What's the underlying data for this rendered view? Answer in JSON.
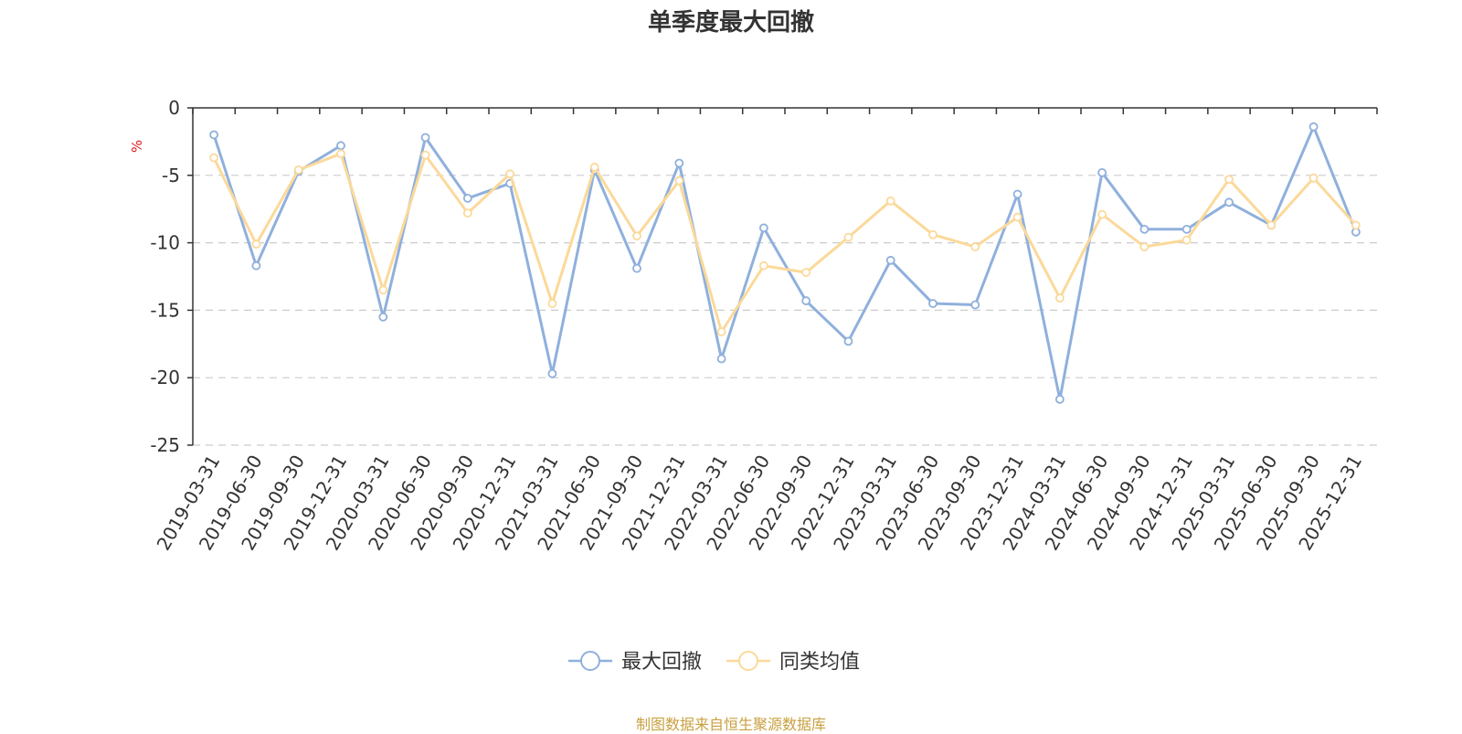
{
  "chart_data": {
    "type": "line",
    "title": "单季度最大回撤",
    "ylabel": "%",
    "ylim": [
      -25,
      0
    ],
    "yticks": [
      0,
      -5,
      -10,
      -15,
      -20,
      -25
    ],
    "grid": true,
    "legend_position": "bottom-center",
    "categories": [
      "2019-03-31",
      "2019-06-30",
      "2019-09-30",
      "2019-12-31",
      "2020-03-31",
      "2020-06-30",
      "2020-09-30",
      "2020-12-31",
      "2021-03-31",
      "2021-06-30",
      "2021-09-30",
      "2021-12-31",
      "2022-03-31",
      "2022-06-30",
      "2022-09-30",
      "2022-12-31",
      "2023-03-31",
      "2023-06-30",
      "2023-09-30",
      "2023-12-31",
      "2024-03-31",
      "2024-06-30",
      "2024-09-30",
      "2024-12-31",
      "2025-03-31",
      "2025-06-30",
      "2025-09-30",
      "2025-12-31"
    ],
    "series": [
      {
        "name": "最大回撤",
        "color": "#8fb0dc",
        "values": [
          -2.0,
          -11.7,
          -4.7,
          -2.8,
          -15.5,
          -2.2,
          -6.7,
          -5.6,
          -19.7,
          -4.6,
          -11.9,
          -4.1,
          -18.6,
          -8.9,
          -14.3,
          -17.3,
          -11.3,
          -14.5,
          -14.6,
          -6.4,
          -21.6,
          -4.8,
          -9.0,
          -9.0,
          -7.0,
          -8.7,
          -1.4,
          -9.2
        ]
      },
      {
        "name": "同类均值",
        "color": "#fbd99a",
        "values": [
          -3.7,
          -10.1,
          -4.6,
          -3.4,
          -13.5,
          -3.5,
          -7.8,
          -4.9,
          -14.5,
          -4.4,
          -9.5,
          -5.4,
          -16.6,
          -11.7,
          -12.2,
          -9.6,
          -6.9,
          -9.4,
          -10.3,
          -8.1,
          -14.1,
          -7.9,
          -10.3,
          -9.8,
          -5.3,
          -8.7,
          -5.2,
          -8.7
        ]
      }
    ]
  },
  "footer": "制图数据来自恒生聚源数据库"
}
